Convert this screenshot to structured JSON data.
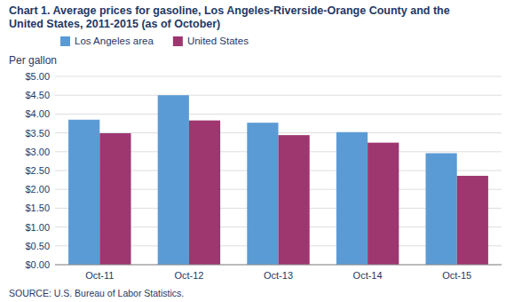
{
  "chart_data": {
    "type": "bar",
    "title": "Chart 1. Average prices for gasoline, Los Angeles-Riverside-Orange County and the\nUnited States, 2011-2015  (as of October)",
    "y_label": "Per gallon",
    "source": "SOURCE: U.S. Bureau of Labor Statistics.",
    "categories": [
      "Oct-11",
      "Oct-12",
      "Oct-13",
      "Oct-14",
      "Oct-15"
    ],
    "series": [
      {
        "name": "Los Angeles area",
        "color": "#5B9BD5",
        "values": [
          3.85,
          4.5,
          3.77,
          3.52,
          2.96
        ]
      },
      {
        "name": "United States",
        "color": "#9E3670",
        "values": [
          3.49,
          3.83,
          3.44,
          3.24,
          2.36
        ]
      }
    ],
    "ylim": [
      0,
      5.0
    ],
    "yticks": [
      {
        "value": 0.0,
        "label": "$0.00"
      },
      {
        "value": 0.5,
        "label": "$0.50"
      },
      {
        "value": 1.0,
        "label": "$1.00"
      },
      {
        "value": 1.5,
        "label": "$1.50"
      },
      {
        "value": 2.0,
        "label": "$2.00"
      },
      {
        "value": 2.5,
        "label": "$2.50"
      },
      {
        "value": 3.0,
        "label": "$3.00"
      },
      {
        "value": 3.5,
        "label": "$3.50"
      },
      {
        "value": 4.0,
        "label": "$4.00"
      },
      {
        "value": 4.5,
        "label": "$4.50"
      },
      {
        "value": 5.0,
        "label": "$5.00"
      }
    ],
    "grid": true,
    "legend": "top-left"
  }
}
